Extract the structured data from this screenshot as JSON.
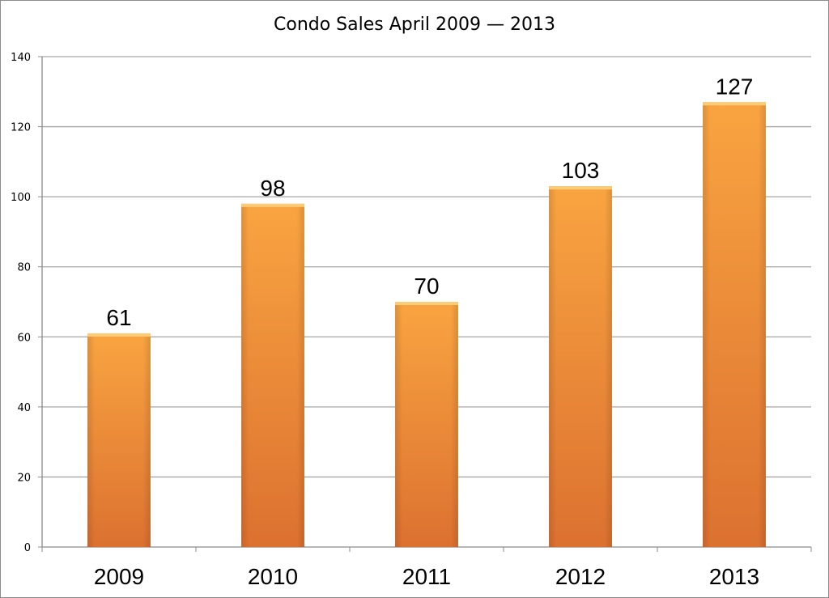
{
  "chart_data": {
    "type": "bar",
    "title": "Condo Sales April 2009 — 2013",
    "categories": [
      "2009",
      "2010",
      "2011",
      "2012",
      "2013"
    ],
    "values": [
      61,
      98,
      70,
      103,
      127
    ],
    "ylim": [
      0,
      140
    ],
    "yticks": [
      "0",
      "20",
      "40",
      "60",
      "80",
      "100",
      "120",
      "140"
    ],
    "xlabel": "",
    "ylabel": "",
    "grid": true,
    "legend": "none",
    "data_labels": true,
    "bar_color_top": "#f9a441",
    "bar_color_bottom": "#dc7130",
    "grid_color": "#a6a6a6"
  }
}
